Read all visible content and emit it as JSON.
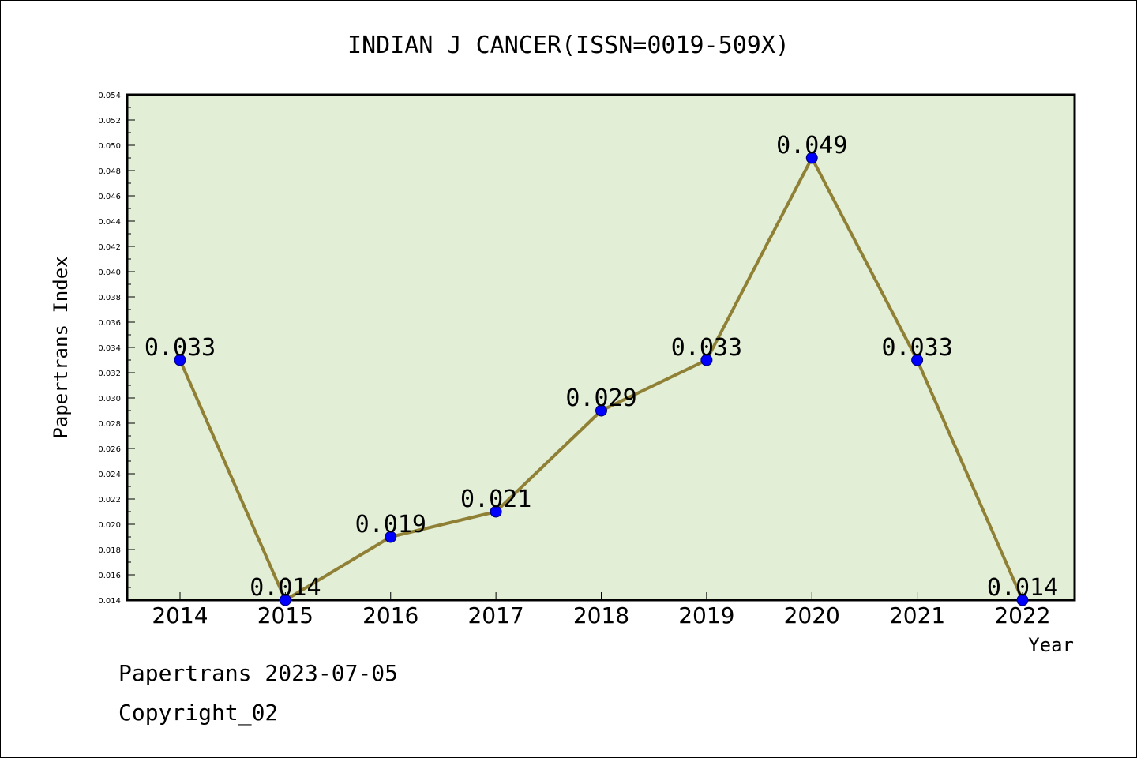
{
  "chart_data": {
    "type": "line",
    "title": "INDIAN J CANCER(ISSN=0019-509X)",
    "xlabel": "Year",
    "ylabel": "Papertrans Index",
    "categories": [
      "2014",
      "2015",
      "2016",
      "2017",
      "2018",
      "2019",
      "2020",
      "2021",
      "2022"
    ],
    "series": [
      {
        "values": [
          0.033,
          0.014,
          0.019,
          0.021,
          0.029,
          0.033,
          0.049,
          0.033,
          0.014
        ],
        "labels": [
          "0.033",
          "0.014",
          "0.019",
          "0.021",
          "0.029",
          "0.033",
          "0.049",
          "0.033",
          "0.014"
        ]
      }
    ],
    "ylim": [
      0.014,
      0.054
    ],
    "yticks": [
      "0.014",
      "0.016",
      "0.018",
      "0.020",
      "0.022",
      "0.024",
      "0.026",
      "0.028",
      "0.030",
      "0.032",
      "0.034",
      "0.036",
      "0.038",
      "0.040",
      "0.042",
      "0.044",
      "0.046",
      "0.048",
      "0.050",
      "0.052",
      "0.054"
    ],
    "grid": false,
    "colors": {
      "plot_background": "#e2efd6",
      "line": "#8f8036",
      "marker": "#0000ff"
    }
  },
  "footer": {
    "line1": "Papertrans 2023-07-05",
    "line2": "Copyright_02"
  }
}
